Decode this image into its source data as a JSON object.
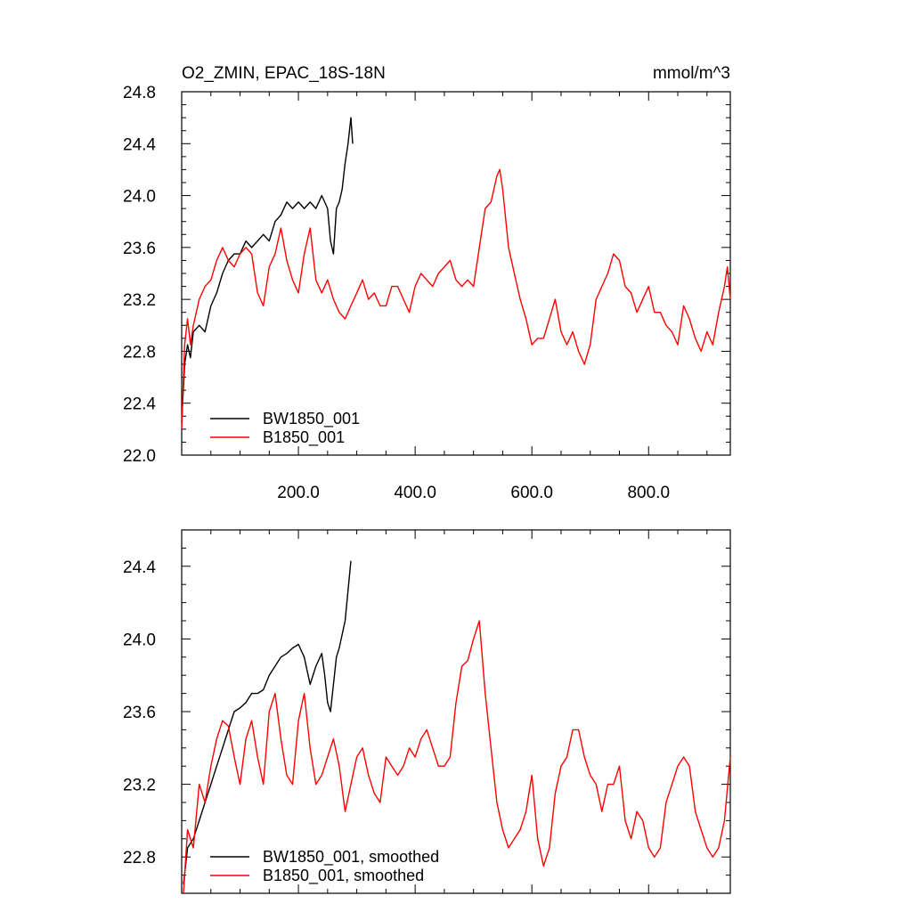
{
  "chart_data": [
    {
      "type": "line",
      "title": "O2_ZMIN, EPAC_18S-18N",
      "units": "mmol/m^3",
      "xlim": [
        0,
        940
      ],
      "ylim": [
        22.0,
        24.8
      ],
      "x_ticks": [
        200,
        400,
        600,
        800
      ],
      "x_tick_labels": [
        "200.0",
        "400.0",
        "600.0",
        "800.0"
      ],
      "y_ticks": [
        22.0,
        22.4,
        22.8,
        23.2,
        23.6,
        24.0,
        24.4,
        24.8
      ],
      "y_tick_labels": [
        "22.0",
        "22.4",
        "22.8",
        "23.2",
        "23.6",
        "24.0",
        "24.4",
        "24.8"
      ],
      "legend_position": "bottom-left",
      "series": [
        {
          "name": "BW1850_001",
          "color": "#000000",
          "x": [
            0,
            5,
            10,
            15,
            20,
            30,
            40,
            50,
            60,
            70,
            80,
            90,
            100,
            110,
            120,
            130,
            140,
            150,
            160,
            170,
            180,
            190,
            200,
            210,
            220,
            230,
            240,
            250,
            255,
            260,
            265,
            270,
            275,
            280,
            285,
            290,
            293
          ],
          "y": [
            22.25,
            22.7,
            22.85,
            22.75,
            22.95,
            23.0,
            22.95,
            23.15,
            23.25,
            23.4,
            23.5,
            23.55,
            23.55,
            23.65,
            23.6,
            23.65,
            23.7,
            23.65,
            23.8,
            23.85,
            23.95,
            23.9,
            23.95,
            23.9,
            23.95,
            23.9,
            24.0,
            23.9,
            23.65,
            23.55,
            23.9,
            23.95,
            24.05,
            24.25,
            24.4,
            24.6,
            24.4
          ]
        },
        {
          "name": "B1850_001",
          "color": "#ff0000",
          "x": [
            0,
            5,
            10,
            15,
            20,
            30,
            40,
            50,
            60,
            70,
            80,
            90,
            100,
            110,
            120,
            130,
            140,
            150,
            160,
            170,
            180,
            190,
            200,
            210,
            220,
            230,
            240,
            250,
            260,
            270,
            280,
            290,
            300,
            310,
            320,
            330,
            340,
            350,
            360,
            370,
            380,
            390,
            400,
            410,
            420,
            430,
            440,
            450,
            460,
            470,
            480,
            490,
            500,
            510,
            520,
            530,
            540,
            545,
            550,
            560,
            570,
            580,
            590,
            600,
            610,
            620,
            630,
            640,
            650,
            660,
            670,
            680,
            690,
            700,
            710,
            720,
            730,
            740,
            750,
            760,
            770,
            780,
            790,
            800,
            810,
            820,
            830,
            840,
            850,
            860,
            870,
            880,
            890,
            900,
            910,
            920,
            930,
            935,
            940
          ],
          "y": [
            22.2,
            22.85,
            23.05,
            22.85,
            23.0,
            23.2,
            23.3,
            23.35,
            23.5,
            23.6,
            23.5,
            23.45,
            23.55,
            23.6,
            23.55,
            23.25,
            23.15,
            23.45,
            23.55,
            23.75,
            23.5,
            23.35,
            23.25,
            23.55,
            23.75,
            23.35,
            23.25,
            23.35,
            23.2,
            23.1,
            23.05,
            23.15,
            23.25,
            23.35,
            23.2,
            23.25,
            23.15,
            23.15,
            23.3,
            23.3,
            23.2,
            23.1,
            23.3,
            23.4,
            23.35,
            23.3,
            23.4,
            23.45,
            23.5,
            23.35,
            23.3,
            23.35,
            23.3,
            23.6,
            23.9,
            23.95,
            24.15,
            24.2,
            24.05,
            23.6,
            23.4,
            23.2,
            23.05,
            22.85,
            22.9,
            22.9,
            23.05,
            23.2,
            22.95,
            22.85,
            22.95,
            22.8,
            22.7,
            22.85,
            23.2,
            23.3,
            23.4,
            23.55,
            23.5,
            23.3,
            23.25,
            23.1,
            23.2,
            23.3,
            23.1,
            23.1,
            23.0,
            22.95,
            22.85,
            23.15,
            23.05,
            22.9,
            22.8,
            22.95,
            22.85,
            23.1,
            23.3,
            23.45,
            23.2
          ]
        }
      ]
    },
    {
      "type": "line",
      "xlim": [
        0,
        940
      ],
      "ylim": [
        22.6,
        24.6
      ],
      "x_ticks": [
        200,
        400,
        600,
        800
      ],
      "y_ticks": [
        22.8,
        23.2,
        23.6,
        24.0,
        24.4
      ],
      "y_tick_labels": [
        "22.8",
        "23.2",
        "23.6",
        "24.0",
        "24.4"
      ],
      "legend_position": "bottom-left",
      "series": [
        {
          "name": "BW1850_001, smoothed",
          "color": "#000000",
          "x": [
            3,
            10,
            20,
            30,
            40,
            50,
            60,
            70,
            80,
            90,
            100,
            110,
            120,
            130,
            140,
            150,
            160,
            170,
            180,
            190,
            200,
            210,
            220,
            230,
            240,
            245,
            250,
            255,
            260,
            265,
            270,
            280,
            290
          ],
          "y": [
            22.65,
            22.85,
            22.9,
            23.0,
            23.1,
            23.2,
            23.3,
            23.4,
            23.5,
            23.6,
            23.62,
            23.65,
            23.7,
            23.7,
            23.72,
            23.8,
            23.85,
            23.9,
            23.92,
            23.95,
            23.97,
            23.9,
            23.75,
            23.85,
            23.92,
            23.8,
            23.65,
            23.6,
            23.75,
            23.9,
            23.95,
            24.1,
            24.43
          ]
        },
        {
          "name": "B1850_001, smoothed",
          "color": "#ff0000",
          "x": [
            3,
            10,
            20,
            30,
            40,
            50,
            60,
            70,
            80,
            90,
            100,
            110,
            120,
            130,
            140,
            150,
            160,
            170,
            180,
            190,
            200,
            210,
            220,
            230,
            240,
            250,
            260,
            270,
            280,
            290,
            300,
            310,
            320,
            330,
            340,
            350,
            360,
            370,
            380,
            390,
            400,
            410,
            420,
            430,
            440,
            450,
            460,
            470,
            480,
            490,
            500,
            510,
            520,
            530,
            540,
            550,
            560,
            570,
            580,
            590,
            600,
            610,
            620,
            630,
            640,
            650,
            660,
            670,
            680,
            690,
            700,
            710,
            720,
            730,
            740,
            750,
            760,
            770,
            780,
            790,
            800,
            810,
            820,
            830,
            840,
            850,
            860,
            870,
            880,
            890,
            900,
            910,
            920,
            930,
            940
          ],
          "y": [
            22.6,
            22.95,
            22.85,
            23.2,
            23.1,
            23.3,
            23.45,
            23.55,
            23.52,
            23.35,
            23.2,
            23.45,
            23.55,
            23.35,
            23.2,
            23.6,
            23.7,
            23.45,
            23.25,
            23.2,
            23.55,
            23.7,
            23.4,
            23.2,
            23.25,
            23.35,
            23.45,
            23.3,
            23.05,
            23.2,
            23.35,
            23.4,
            23.25,
            23.15,
            23.1,
            23.35,
            23.3,
            23.25,
            23.3,
            23.4,
            23.35,
            23.45,
            23.5,
            23.4,
            23.3,
            23.3,
            23.35,
            23.65,
            23.85,
            23.88,
            24.0,
            24.1,
            23.7,
            23.4,
            23.1,
            22.95,
            22.85,
            22.9,
            22.95,
            23.05,
            23.25,
            22.9,
            22.75,
            22.85,
            23.15,
            23.3,
            23.35,
            23.5,
            23.5,
            23.35,
            23.25,
            23.2,
            23.05,
            23.2,
            23.2,
            23.3,
            23.0,
            22.9,
            23.05,
            23.0,
            22.85,
            22.8,
            22.85,
            23.1,
            23.2,
            23.3,
            23.35,
            23.3,
            23.05,
            22.95,
            22.85,
            22.8,
            22.85,
            23.0,
            23.35
          ]
        }
      ]
    }
  ]
}
